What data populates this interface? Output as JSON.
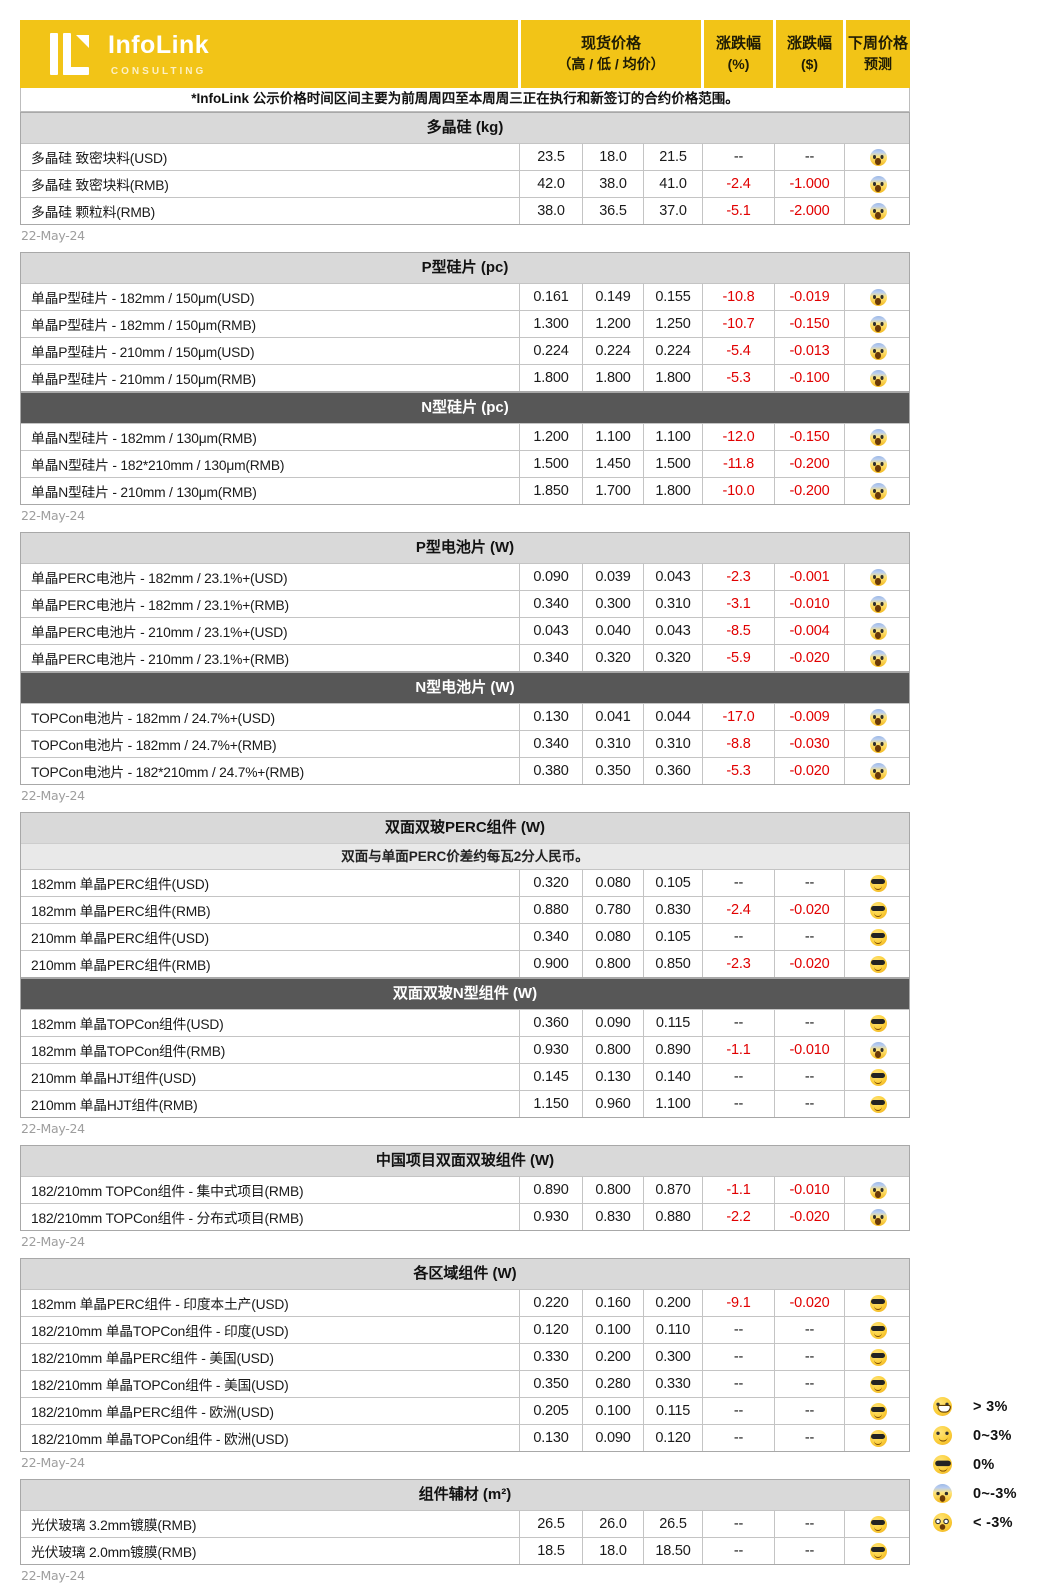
{
  "header": {
    "logo": {
      "brand": "InfoLink",
      "sub": "CONSULTING"
    },
    "columns": {
      "price": {
        "line1": "现货价格",
        "line2": "（高 / 低 / 均价）"
      },
      "pct": {
        "line1": "涨跌幅",
        "line2": "(%)"
      },
      "usd": {
        "line1": "涨跌幅",
        "line2": "($)"
      },
      "forecast": {
        "line1": "下周价格",
        "line2": "预测"
      }
    }
  },
  "note": "*InfoLink 公示价格时间区间主要为前周周四至本周周三正在执行和新签订的合约价格范围。",
  "colors": {
    "brand_yellow": "#F2C417",
    "section_light": "#D9D9D9",
    "section_dark": "#575757",
    "negative_red": "#E10000",
    "date_gray": "#9E9E9E"
  },
  "sections": [
    {
      "title": "多晶硅 (kg)",
      "style": "light",
      "date": "22-May-24",
      "rows": [
        {
          "label": "多晶硅 致密块料(USD)",
          "high": "23.5",
          "low": "18.0",
          "avg": "21.5",
          "pct": "--",
          "chg": "--",
          "emoji": "scream-emoji"
        },
        {
          "label": "多晶硅 致密块料(RMB)",
          "high": "42.0",
          "low": "38.0",
          "avg": "41.0",
          "pct": "-2.4",
          "chg": "-1.000",
          "emoji": "scream-emoji"
        },
        {
          "label": "多晶硅 颗粒料(RMB)",
          "high": "38.0",
          "low": "36.5",
          "avg": "37.0",
          "pct": "-5.1",
          "chg": "-2.000",
          "emoji": "scream-emoji"
        }
      ]
    },
    {
      "title": "P型硅片 (pc)",
      "style": "light",
      "rows": [
        {
          "label": "单晶P型硅片 - 182mm / 150μm(USD)",
          "high": "0.161",
          "low": "0.149",
          "avg": "0.155",
          "pct": "-10.8",
          "chg": "-0.019",
          "emoji": "scream-emoji"
        },
        {
          "label": "单晶P型硅片 - 182mm / 150μm(RMB)",
          "high": "1.300",
          "low": "1.200",
          "avg": "1.250",
          "pct": "-10.7",
          "chg": "-0.150",
          "emoji": "scream-emoji"
        },
        {
          "label": "单晶P型硅片 - 210mm / 150μm(USD)",
          "high": "0.224",
          "low": "0.224",
          "avg": "0.224",
          "pct": "-5.4",
          "chg": "-0.013",
          "emoji": "scream-emoji"
        },
        {
          "label": "单晶P型硅片 - 210mm / 150μm(RMB)",
          "high": "1.800",
          "low": "1.800",
          "avg": "1.800",
          "pct": "-5.3",
          "chg": "-0.100",
          "emoji": "scream-emoji"
        }
      ]
    },
    {
      "title": "N型硅片 (pc)",
      "style": "dark",
      "date": "22-May-24",
      "rows": [
        {
          "label": "单晶N型硅片 - 182mm / 130μm(RMB)",
          "high": "1.200",
          "low": "1.100",
          "avg": "1.100",
          "pct": "-12.0",
          "chg": "-0.150",
          "emoji": "scream-emoji"
        },
        {
          "label": "单晶N型硅片 - 182*210mm / 130μm(RMB)",
          "high": "1.500",
          "low": "1.450",
          "avg": "1.500",
          "pct": "-11.8",
          "chg": "-0.200",
          "emoji": "scream-emoji"
        },
        {
          "label": "单晶N型硅片 - 210mm / 130μm(RMB)",
          "high": "1.850",
          "low": "1.700",
          "avg": "1.800",
          "pct": "-10.0",
          "chg": "-0.200",
          "emoji": "scream-emoji"
        }
      ]
    },
    {
      "title": "P型电池片 (W)",
      "style": "light",
      "rows": [
        {
          "label": "单晶PERC电池片 - 182mm / 23.1%+(USD)",
          "high": "0.090",
          "low": "0.039",
          "avg": "0.043",
          "pct": "-2.3",
          "chg": "-0.001",
          "emoji": "scream-emoji"
        },
        {
          "label": "单晶PERC电池片 - 182mm / 23.1%+(RMB)",
          "high": "0.340",
          "low": "0.300",
          "avg": "0.310",
          "pct": "-3.1",
          "chg": "-0.010",
          "emoji": "scream-emoji"
        },
        {
          "label": "单晶PERC电池片 - 210mm / 23.1%+(USD)",
          "high": "0.043",
          "low": "0.040",
          "avg": "0.043",
          "pct": "-8.5",
          "chg": "-0.004",
          "emoji": "scream-emoji"
        },
        {
          "label": "单晶PERC电池片 - 210mm / 23.1%+(RMB)",
          "high": "0.340",
          "low": "0.320",
          "avg": "0.320",
          "pct": "-5.9",
          "chg": "-0.020",
          "emoji": "scream-emoji"
        }
      ]
    },
    {
      "title": "N型电池片 (W)",
      "style": "dark",
      "date": "22-May-24",
      "rows": [
        {
          "label": "TOPCon电池片 - 182mm / 24.7%+(USD)",
          "high": "0.130",
          "low": "0.041",
          "avg": "0.044",
          "pct": "-17.0",
          "chg": "-0.009",
          "emoji": "scream-emoji"
        },
        {
          "label": "TOPCon电池片 - 182mm / 24.7%+(RMB)",
          "high": "0.340",
          "low": "0.310",
          "avg": "0.310",
          "pct": "-8.8",
          "chg": "-0.030",
          "emoji": "scream-emoji"
        },
        {
          "label": "TOPCon电池片 - 182*210mm / 24.7%+(RMB)",
          "high": "0.380",
          "low": "0.350",
          "avg": "0.360",
          "pct": "-5.3",
          "chg": "-0.020",
          "emoji": "scream-emoji"
        }
      ]
    },
    {
      "title": "双面双玻PERC组件 (W)",
      "style": "light",
      "subtitle": "双面与单面PERC价差约每瓦2分人民币。",
      "rows": [
        {
          "label": "182mm 单晶PERC组件(USD)",
          "high": "0.320",
          "low": "0.080",
          "avg": "0.105",
          "pct": "--",
          "chg": "--",
          "emoji": "cool-emoji"
        },
        {
          "label": "182mm 单晶PERC组件(RMB)",
          "high": "0.880",
          "low": "0.780",
          "avg": "0.830",
          "pct": "-2.4",
          "chg": "-0.020",
          "emoji": "cool-emoji"
        },
        {
          "label": "210mm 单晶PERC组件(USD)",
          "high": "0.340",
          "low": "0.080",
          "avg": "0.105",
          "pct": "--",
          "chg": "--",
          "emoji": "cool-emoji"
        },
        {
          "label": "210mm 单晶PERC组件(RMB)",
          "high": "0.900",
          "low": "0.800",
          "avg": "0.850",
          "pct": "-2.3",
          "chg": "-0.020",
          "emoji": "cool-emoji"
        }
      ]
    },
    {
      "title": "双面双玻N型组件 (W)",
      "style": "dark",
      "date": "22-May-24",
      "rows": [
        {
          "label": "182mm 单晶TOPCon组件(USD)",
          "high": "0.360",
          "low": "0.090",
          "avg": "0.115",
          "pct": "--",
          "chg": "--",
          "emoji": "cool-emoji"
        },
        {
          "label": "182mm 单晶TOPCon组件(RMB)",
          "high": "0.930",
          "low": "0.800",
          "avg": "0.890",
          "pct": "-1.1",
          "chg": "-0.010",
          "emoji": "scream-emoji"
        },
        {
          "label": "210mm 单晶HJT组件(USD)",
          "high": "0.145",
          "low": "0.130",
          "avg": "0.140",
          "pct": "--",
          "chg": "--",
          "emoji": "cool-emoji"
        },
        {
          "label": "210mm 单晶HJT组件(RMB)",
          "high": "1.150",
          "low": "0.960",
          "avg": "1.100",
          "pct": "--",
          "chg": "--",
          "emoji": "cool-emoji"
        }
      ]
    },
    {
      "title": "中国项目双面双玻组件 (W)",
      "style": "light",
      "date": "22-May-24",
      "rows": [
        {
          "label": "182/210mm TOPCon组件 - 集中式项目(RMB)",
          "high": "0.890",
          "low": "0.800",
          "avg": "0.870",
          "pct": "-1.1",
          "chg": "-0.010",
          "emoji": "scream-emoji"
        },
        {
          "label": "182/210mm TOPCon组件 - 分布式项目(RMB)",
          "high": "0.930",
          "low": "0.830",
          "avg": "0.880",
          "pct": "-2.2",
          "chg": "-0.020",
          "emoji": "scream-emoji"
        }
      ]
    },
    {
      "title": "各区域组件 (W)",
      "style": "light",
      "date": "22-May-24",
      "rows": [
        {
          "label": "182mm 单晶PERC组件 - 印度本土产(USD)",
          "high": "0.220",
          "low": "0.160",
          "avg": "0.200",
          "pct": "-9.1",
          "chg": "-0.020",
          "emoji": "cool-emoji"
        },
        {
          "label": "182/210mm 单晶TOPCon组件 - 印度(USD)",
          "high": "0.120",
          "low": "0.100",
          "avg": "0.110",
          "pct": "--",
          "chg": "--",
          "emoji": "cool-emoji"
        },
        {
          "label": "182/210mm 单晶PERC组件 - 美国(USD)",
          "high": "0.330",
          "low": "0.200",
          "avg": "0.300",
          "pct": "--",
          "chg": "--",
          "emoji": "cool-emoji"
        },
        {
          "label": "182/210mm 单晶TOPCon组件 - 美国(USD)",
          "high": "0.350",
          "low": "0.280",
          "avg": "0.330",
          "pct": "--",
          "chg": "--",
          "emoji": "cool-emoji"
        },
        {
          "label": "182/210mm 单晶PERC组件 - 欧洲(USD)",
          "high": "0.205",
          "low": "0.100",
          "avg": "0.115",
          "pct": "--",
          "chg": "--",
          "emoji": "cool-emoji"
        },
        {
          "label": "182/210mm 单晶TOPCon组件 - 欧洲(USD)",
          "high": "0.130",
          "low": "0.090",
          "avg": "0.120",
          "pct": "--",
          "chg": "--",
          "emoji": "cool-emoji"
        }
      ]
    },
    {
      "title": "组件辅材 (m²)",
      "style": "light",
      "date": "22-May-24",
      "rows": [
        {
          "label": "光伏玻璃 3.2mm镀膜(RMB)",
          "high": "26.5",
          "low": "26.0",
          "avg": "26.5",
          "pct": "--",
          "chg": "--",
          "emoji": "cool-emoji"
        },
        {
          "label": "光伏玻璃 2.0mm镀膜(RMB)",
          "high": "18.5",
          "low": "18.0",
          "avg": "18.50",
          "pct": "--",
          "chg": "--",
          "emoji": "cool-emoji"
        }
      ]
    }
  ],
  "legend": {
    "items": [
      {
        "emoji": "grin-emoji",
        "label": "> 3%"
      },
      {
        "emoji": "smile-emoji",
        "label": "0~3%"
      },
      {
        "emoji": "cool-emoji",
        "label": "0%"
      },
      {
        "emoji": "scream-emoji",
        "label": "0~-3%"
      },
      {
        "emoji": "dizzy-emoji",
        "label": "< -3%"
      }
    ]
  }
}
